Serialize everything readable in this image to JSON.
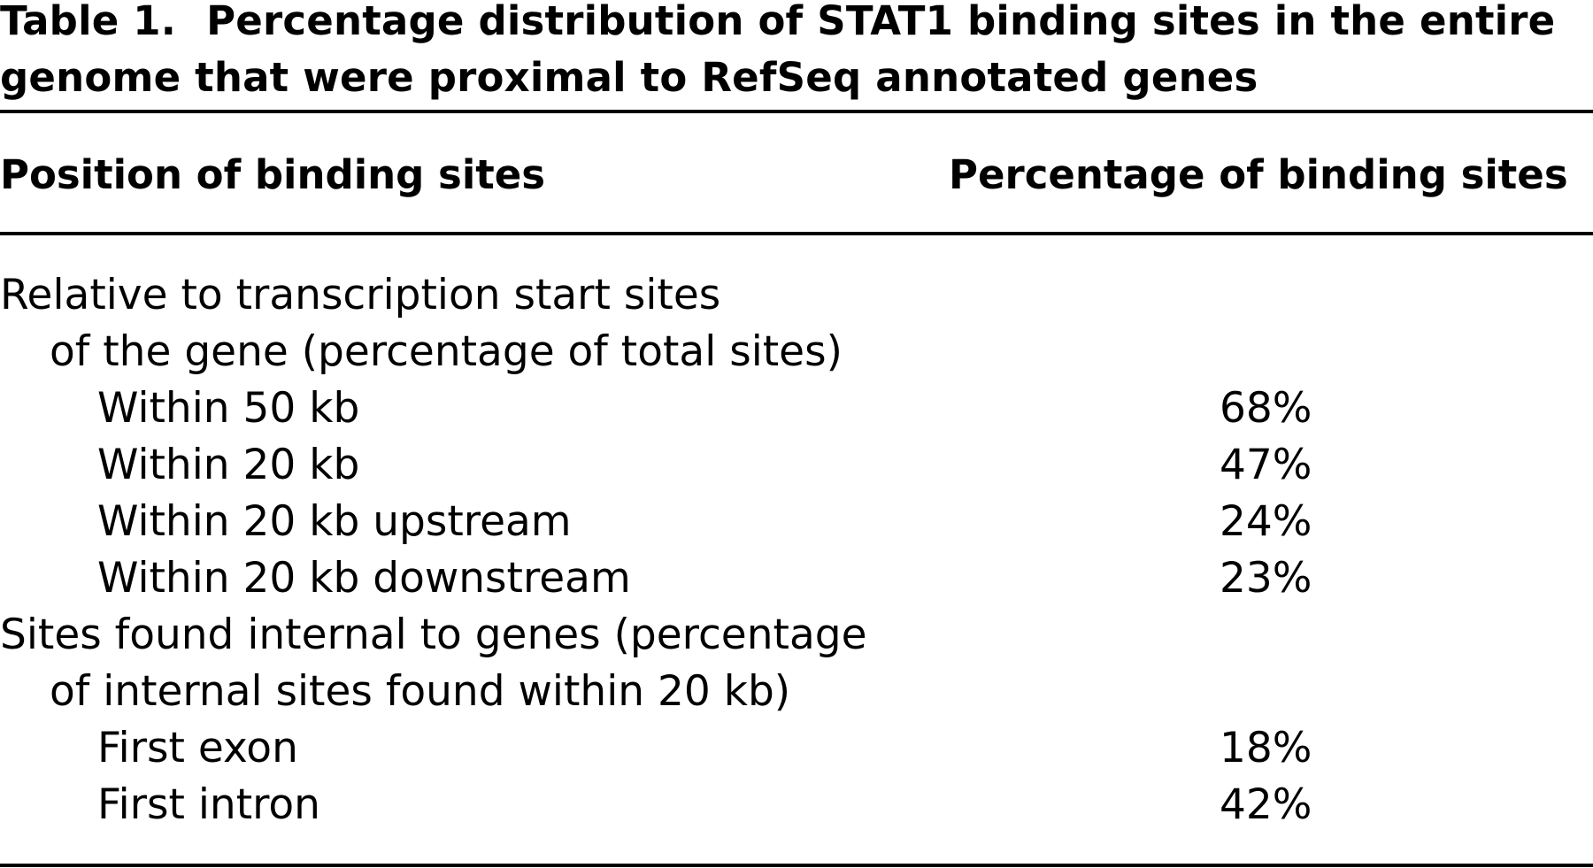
{
  "caption": {
    "label": "Table 1.",
    "text": "Percentage distribution of STAT1 binding sites in the entire genome that were proximal to RefSeq annotated genes"
  },
  "header": {
    "col_position": "Position of binding sites",
    "col_percentage": "Percentage of binding sites"
  },
  "rows": [
    {
      "label": "Relative to transcription start sites",
      "value": "",
      "indent": 0
    },
    {
      "label": "of the gene (percentage of total sites)",
      "value": "",
      "indent": 1
    },
    {
      "label": "Within 50 kb",
      "value": "68%",
      "indent": 2
    },
    {
      "label": "Within 20 kb",
      "value": "47%",
      "indent": 2
    },
    {
      "label": "Within 20 kb upstream",
      "value": "24%",
      "indent": 2
    },
    {
      "label": "Within 20 kb downstream",
      "value": "23%",
      "indent": 2
    },
    {
      "label": "Sites found internal to genes (percentage",
      "value": "",
      "indent": 0
    },
    {
      "label": "of internal sites found within 20 kb)",
      "value": "",
      "indent": 1
    },
    {
      "label": "First exon",
      "value": "18%",
      "indent": 2
    },
    {
      "label": "First intron",
      "value": "42%",
      "indent": 2
    }
  ]
}
